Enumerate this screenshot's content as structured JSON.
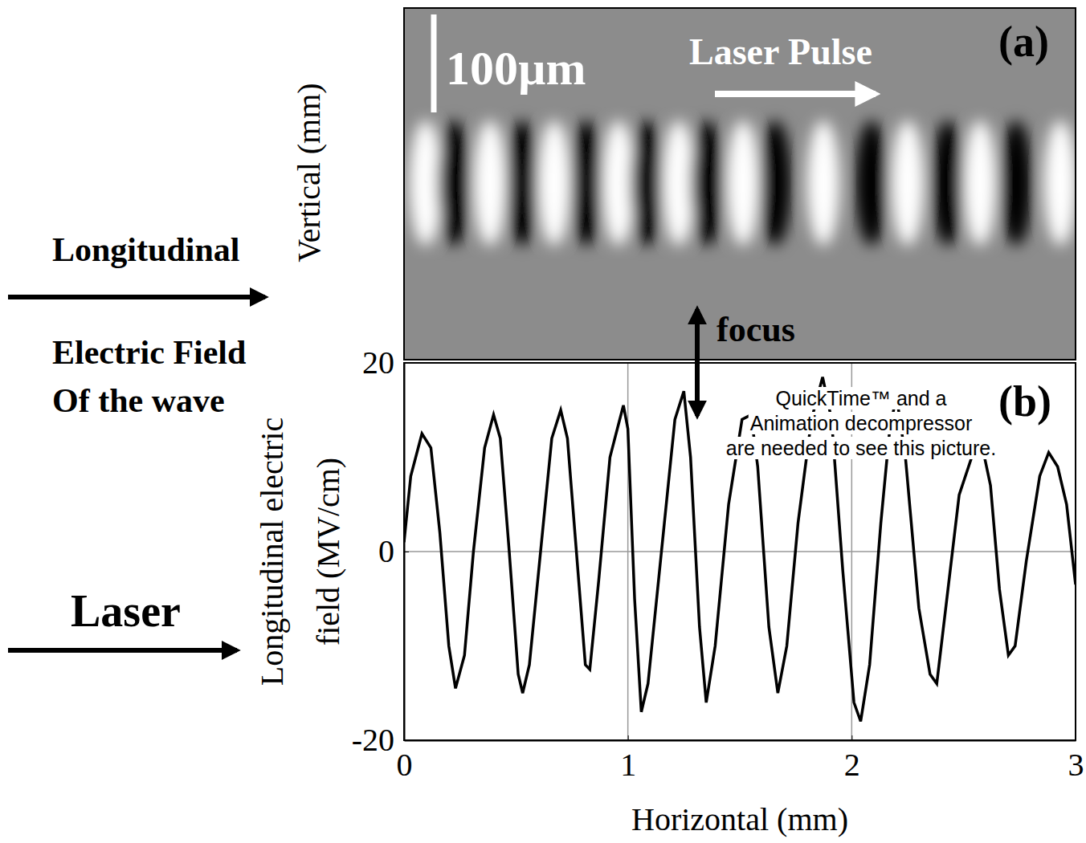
{
  "chart_data": {
    "type": "line",
    "x_label": "Horizontal (mm)",
    "y_label": "Longitudinal electric field (MV/cm)",
    "panel_label": "(b)",
    "xlim": [
      0,
      3
    ],
    "ylim": [
      -20,
      20
    ],
    "xticks": [
      0,
      1,
      2,
      3
    ],
    "yticks": [
      -20,
      0,
      20
    ],
    "grid": true,
    "x": [
      0.0,
      0.03,
      0.08,
      0.12,
      0.16,
      0.2,
      0.23,
      0.27,
      0.31,
      0.36,
      0.4,
      0.43,
      0.47,
      0.51,
      0.53,
      0.56,
      0.61,
      0.66,
      0.7,
      0.73,
      0.77,
      0.81,
      0.83,
      0.87,
      0.92,
      0.98,
      1.0,
      1.03,
      1.06,
      1.09,
      1.15,
      1.21,
      1.25,
      1.28,
      1.32,
      1.35,
      1.39,
      1.45,
      1.51,
      1.55,
      1.58,
      1.63,
      1.67,
      1.71,
      1.76,
      1.82,
      1.87,
      1.91,
      1.96,
      2.01,
      2.04,
      2.08,
      2.13,
      2.17,
      2.2,
      2.24,
      2.3,
      2.35,
      2.38,
      2.42,
      2.48,
      2.55,
      2.58,
      2.62,
      2.66,
      2.7,
      2.73,
      2.78,
      2.84,
      2.88,
      2.92,
      2.96,
      3.0
    ],
    "series": [
      {
        "color": "#000000",
        "line_style": "solid",
        "values": [
          1,
          8,
          12.5,
          11,
          2,
          -10,
          -14.5,
          -11,
          0,
          11,
          14.5,
          12,
          0,
          -13,
          -15,
          -12,
          0,
          12,
          15,
          12,
          0,
          -12,
          -12.5,
          -3,
          10,
          15.5,
          13,
          -5,
          -17,
          -14,
          0,
          14,
          17,
          10,
          -8,
          -16,
          -10,
          5,
          14,
          14.5,
          9,
          -8,
          -15,
          -10,
          3,
          14,
          18.5,
          14,
          -2,
          -16,
          -18,
          -12,
          3,
          13,
          16.5,
          10,
          -6,
          -13,
          -14,
          -6,
          6,
          11,
          11.5,
          7,
          -4,
          -11,
          -10,
          -1,
          8,
          10.5,
          9,
          5,
          -3.5
        ]
      }
    ],
    "image_panel": {
      "label": "(a)",
      "y_label": "Vertical (mm)",
      "scale_bar": "100µm",
      "arrow_label": "Laser Pulse"
    },
    "annotations": {
      "wave_label": [
        "Longitudinal",
        "Electric Field",
        "Of the wave"
      ],
      "laser_label": "Laser",
      "focus_label": "focus",
      "placeholder": [
        "QuickTime™ and a",
        "Animation decompressor",
        "are needed to see this picture."
      ]
    }
  }
}
